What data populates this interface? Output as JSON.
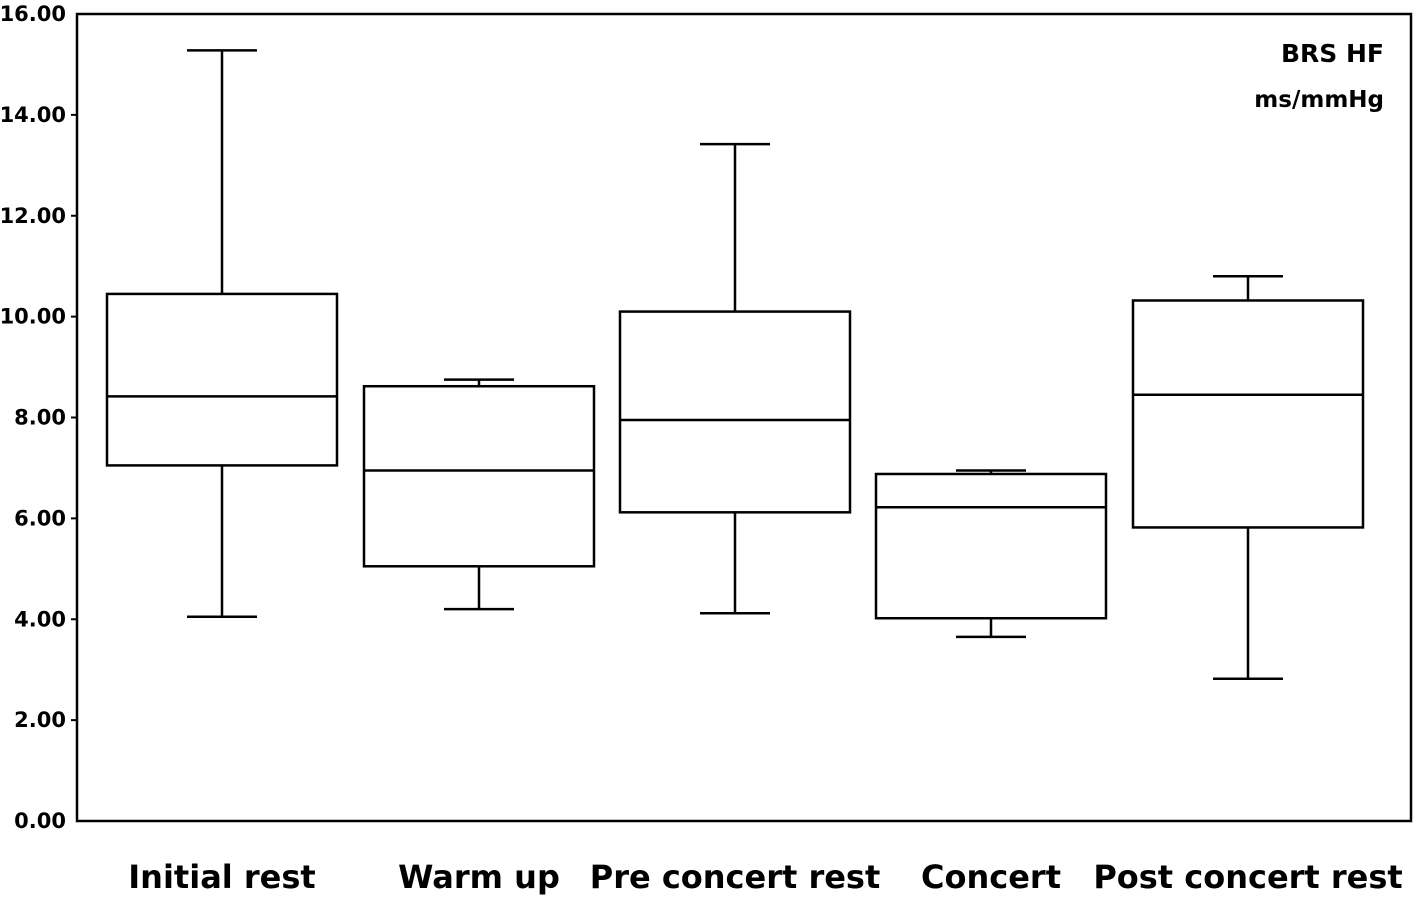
{
  "chart_data": {
    "type": "boxplot",
    "title": "",
    "xlabel": "",
    "ylabel": "",
    "annotation": {
      "title": "BRS HF",
      "unit": "ms/mmHg",
      "placement": "top-right"
    },
    "ylim": [
      0,
      16
    ],
    "yticks": [
      "0.00",
      "2.00",
      "4.00",
      "6.00",
      "8.00",
      "10.00",
      "12.00",
      "14.00",
      "16.00"
    ],
    "grid": false,
    "legend": "none",
    "categories": [
      "Initial rest",
      "Warm up",
      "Pre concert rest",
      "Concert",
      "Post concert rest"
    ],
    "boxes": [
      {
        "category": "Initial rest",
        "whisker_low": 4.05,
        "q1": 7.05,
        "median": 8.42,
        "q3": 10.45,
        "whisker_high": 15.28
      },
      {
        "category": "Warm up",
        "whisker_low": 4.2,
        "q1": 5.05,
        "median": 6.95,
        "q3": 8.62,
        "whisker_high": 8.75
      },
      {
        "category": "Pre concert rest",
        "whisker_low": 4.12,
        "q1": 6.12,
        "median": 7.95,
        "q3": 10.1,
        "whisker_high": 13.42
      },
      {
        "category": "Concert",
        "whisker_low": 3.65,
        "q1": 4.02,
        "median": 6.22,
        "q3": 6.88,
        "whisker_high": 6.95
      },
      {
        "category": "Post concert rest",
        "whisker_low": 2.82,
        "q1": 5.82,
        "median": 8.45,
        "q3": 10.32,
        "whisker_high": 10.8
      }
    ],
    "colors": {
      "stroke": "#000000",
      "box_fill": "#ffffff",
      "background": "#ffffff"
    }
  }
}
